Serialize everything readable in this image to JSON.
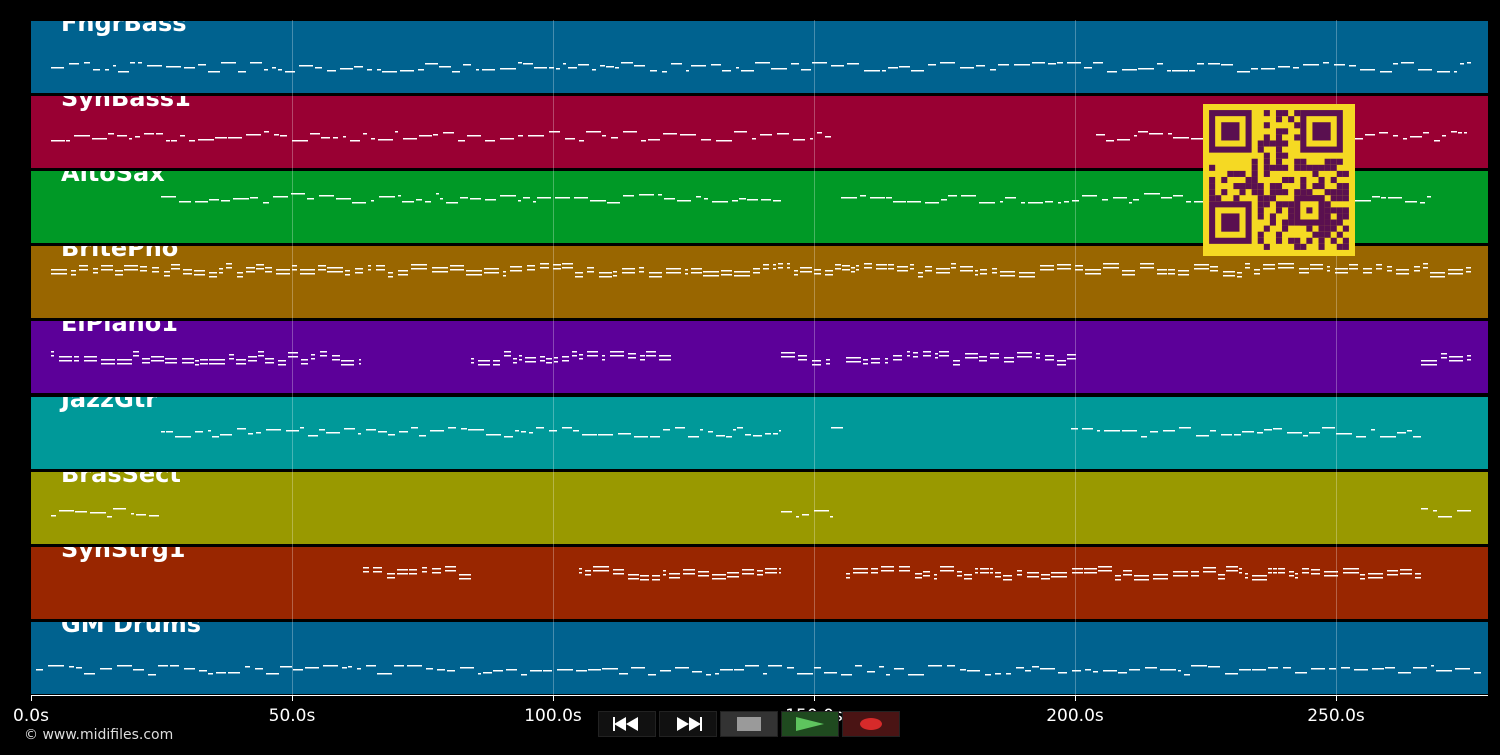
{
  "tracks": [
    {
      "name": "FngrBass",
      "color": "#00628f"
    },
    {
      "name": "SynBass1",
      "color": "#990033"
    },
    {
      "name": "AltoSax",
      "color": "#009926"
    },
    {
      "name": "BritePno",
      "color": "#996600"
    },
    {
      "name": "ElPiano1",
      "color": "#5c0099"
    },
    {
      "name": "JazzGtr",
      "color": "#009999"
    },
    {
      "name": "BrasSect",
      "color": "#999900"
    },
    {
      "name": "SynStrg1",
      "color": "#992600"
    },
    {
      "name": "GM Drums",
      "color": "#00628f"
    }
  ],
  "timeline": {
    "ticks": [
      "0.0s",
      "50.0s",
      "100.0s",
      "150.0s",
      "200.0s",
      "250.0s"
    ]
  },
  "transport": {
    "rewind_icon": "rewind-icon",
    "fast_forward_icon": "fast-forward-icon",
    "stop_icon": "stop-icon",
    "play_icon": "play-icon",
    "record_icon": "record-icon",
    "play_color": "#2f8a2f",
    "record_color": "#d62a2a"
  },
  "qr": {
    "color": "#5a1050",
    "background": "#f5d923"
  },
  "footer": {
    "copyright": "© www.midifiles.com"
  }
}
